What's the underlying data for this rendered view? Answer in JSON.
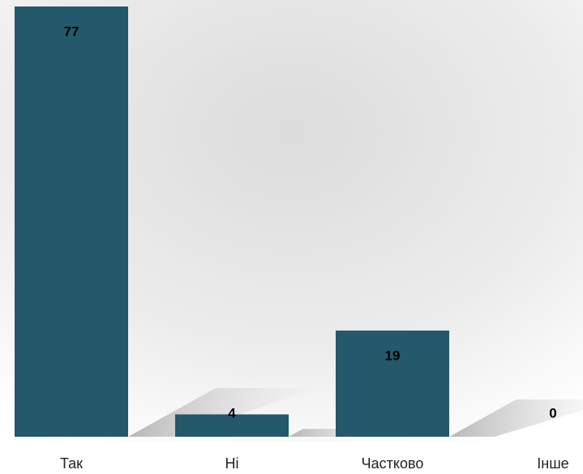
{
  "chart_data": {
    "type": "bar",
    "categories": [
      "Так",
      "Ні",
      "Частково",
      "Інше"
    ],
    "values": [
      77,
      4,
      19,
      0
    ],
    "color": "#23596a"
  }
}
